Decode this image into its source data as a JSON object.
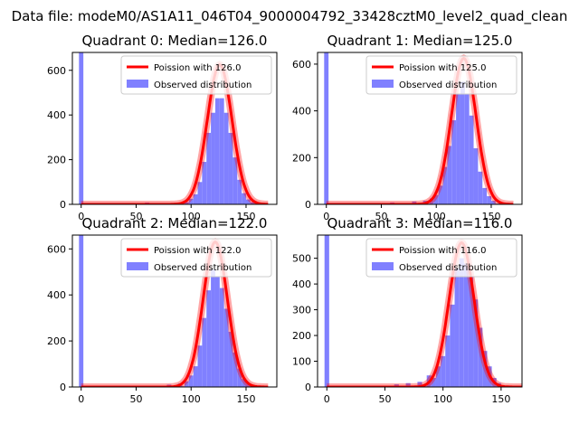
{
  "suptitle": "Data file: modeM0/AS1A11_046T04_9000004792_33428cztM0_level2_quad_clean",
  "chart_data": [
    {
      "type": "bar+line",
      "title": "Quadrant 0: Median=126.0",
      "median": 126.0,
      "line_label": "Poission with 126.0",
      "bar_label": "Observed distribution",
      "xlim": [
        -8,
        178
      ],
      "ylim": [
        0,
        680
      ],
      "xticks": [
        0,
        50,
        100,
        150
      ],
      "yticks": [
        0,
        200,
        400,
        600
      ],
      "line_peak": 625,
      "zero_bin": 680,
      "hist": [
        [
          60,
          8
        ],
        [
          80,
          5
        ],
        [
          90,
          5
        ],
        [
          96,
          10
        ],
        [
          100,
          25
        ],
        [
          104,
          45
        ],
        [
          108,
          100
        ],
        [
          112,
          190
        ],
        [
          116,
          320
        ],
        [
          120,
          410
        ],
        [
          124,
          475
        ],
        [
          128,
          475
        ],
        [
          132,
          410
        ],
        [
          136,
          320
        ],
        [
          140,
          210
        ],
        [
          144,
          110
        ],
        [
          148,
          50
        ],
        [
          152,
          22
        ],
        [
          156,
          10
        ]
      ]
    },
    {
      "type": "bar+line",
      "title": "Quadrant 1: Median=125.0",
      "median": 125.0,
      "line_label": "Poission with 125.0",
      "bar_label": "Observed distribution",
      "xlim": [
        -8,
        178
      ],
      "ylim": [
        0,
        650
      ],
      "xticks": [
        0,
        50,
        100,
        150
      ],
      "yticks": [
        0,
        200,
        400,
        600
      ],
      "line_peak": 625,
      "zero_bin": 650,
      "hist": [
        [
          40,
          5
        ],
        [
          60,
          8
        ],
        [
          80,
          12
        ],
        [
          90,
          15
        ],
        [
          96,
          25
        ],
        [
          100,
          40
        ],
        [
          104,
          80
        ],
        [
          108,
          160
        ],
        [
          112,
          250
        ],
        [
          116,
          360
        ],
        [
          120,
          470
        ],
        [
          124,
          525
        ],
        [
          128,
          470
        ],
        [
          132,
          380
        ],
        [
          136,
          240
        ],
        [
          140,
          140
        ],
        [
          144,
          70
        ],
        [
          148,
          35
        ],
        [
          152,
          15
        ]
      ]
    },
    {
      "type": "bar+line",
      "title": "Quadrant 2: Median=122.0",
      "median": 122.0,
      "line_label": "Poission with 122.0",
      "bar_label": "Observed distribution",
      "xlim": [
        -8,
        178
      ],
      "ylim": [
        0,
        660
      ],
      "xticks": [
        0,
        50,
        100,
        150
      ],
      "yticks": [
        0,
        200,
        400,
        600
      ],
      "line_peak": 630,
      "zero_bin": 660,
      "hist": [
        [
          60,
          5
        ],
        [
          80,
          10
        ],
        [
          90,
          15
        ],
        [
          96,
          25
        ],
        [
          100,
          50
        ],
        [
          104,
          90
        ],
        [
          108,
          180
        ],
        [
          112,
          300
        ],
        [
          116,
          420
        ],
        [
          120,
          510
        ],
        [
          124,
          480
        ],
        [
          128,
          430
        ],
        [
          132,
          340
        ],
        [
          136,
          240
        ],
        [
          140,
          150
        ],
        [
          144,
          80
        ],
        [
          148,
          35
        ],
        [
          152,
          15
        ]
      ]
    },
    {
      "type": "bar+line",
      "title": "Quadrant 3: Median=116.0",
      "median": 116.0,
      "line_label": "Poission with 116.0",
      "bar_label": "Observed distribution",
      "xlim": [
        -8,
        168
      ],
      "ylim": [
        0,
        590
      ],
      "xticks": [
        0,
        50,
        100,
        150
      ],
      "yticks": [
        0,
        100,
        200,
        300,
        400,
        500
      ],
      "line_peak": 560,
      "zero_bin": 590,
      "hist": [
        [
          50,
          5
        ],
        [
          60,
          10
        ],
        [
          70,
          15
        ],
        [
          80,
          20
        ],
        [
          88,
          45
        ],
        [
          92,
          35
        ],
        [
          96,
          80
        ],
        [
          100,
          120
        ],
        [
          104,
          200
        ],
        [
          108,
          320
        ],
        [
          112,
          460
        ],
        [
          116,
          500
        ],
        [
          120,
          480
        ],
        [
          124,
          430
        ],
        [
          128,
          340
        ],
        [
          132,
          230
        ],
        [
          136,
          140
        ],
        [
          140,
          80
        ],
        [
          144,
          35
        ],
        [
          148,
          15
        ]
      ]
    }
  ]
}
